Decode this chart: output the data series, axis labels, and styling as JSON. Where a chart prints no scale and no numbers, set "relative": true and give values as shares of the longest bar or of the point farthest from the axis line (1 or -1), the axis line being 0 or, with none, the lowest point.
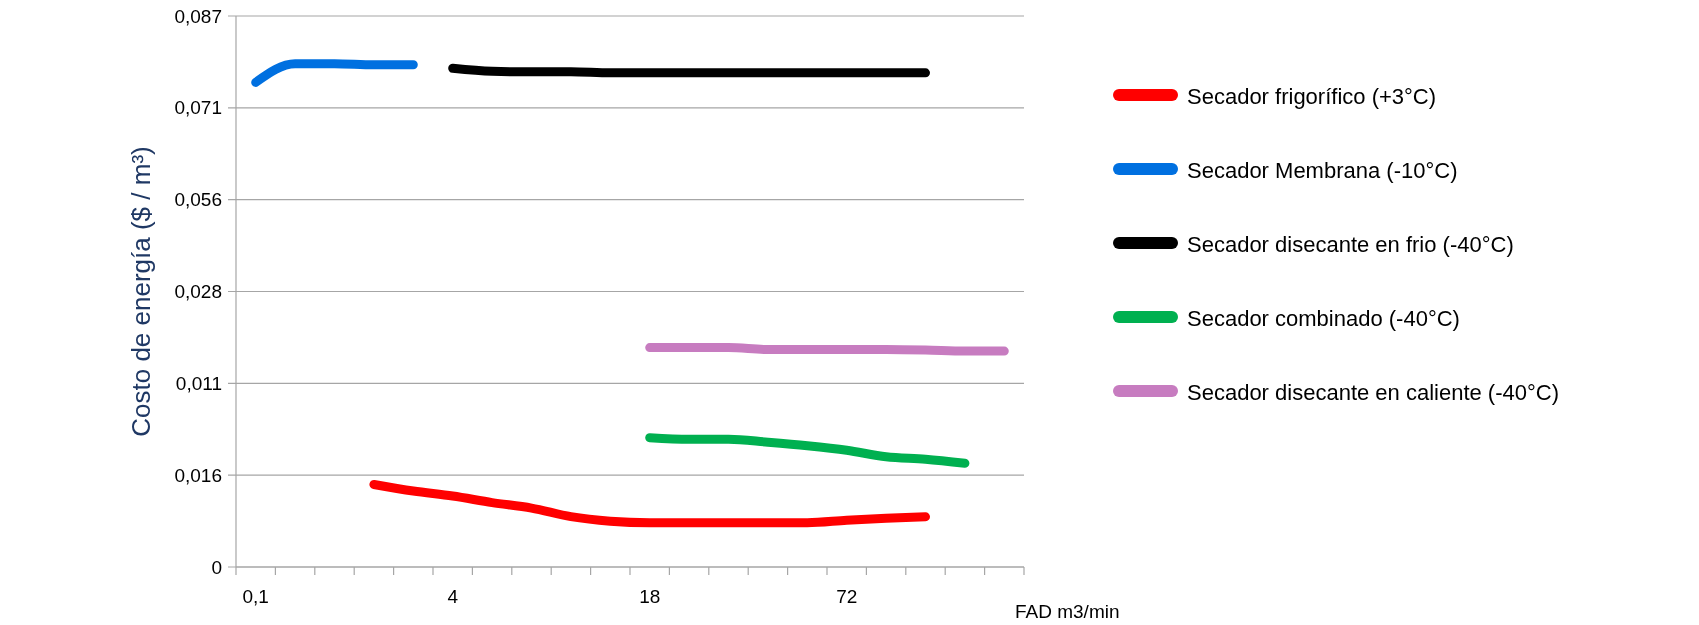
{
  "chart_data": {
    "type": "line",
    "xlabel": "FAD m3/min",
    "ylabel": "Costo de energía ($ / m³)",
    "relative": true,
    "categories": [
      "0,1",
      null,
      null,
      null,
      null,
      "4",
      null,
      null,
      null,
      null,
      "18",
      null,
      null,
      null,
      null,
      "72",
      null,
      null,
      null,
      null
    ],
    "annotations": [
      "0",
      "0,016",
      "0,011",
      "0,028",
      "0,056",
      "0,071",
      "0,087"
    ],
    "grid": "y",
    "legend": "right",
    "line_style": "solid",
    "marker": "none",
    "series": [
      {
        "name": "Secador frigorífico  (+3°C)",
        "color": "#ff0000",
        "values": [
          null,
          null,
          null,
          0.164,
          0.151,
          0.141,
          0.128,
          0.117,
          0.1,
          0.091,
          0.088,
          0.088,
          0.088,
          0.088,
          0.088,
          0.093,
          0.097,
          0.1,
          null,
          null
        ]
      },
      {
        "name": "Secador  Membrana (-10°C)",
        "color": "#0070e0",
        "values": [
          0.963,
          1,
          1,
          0.998,
          0.998,
          null,
          null,
          null,
          null,
          null,
          null,
          null,
          null,
          null,
          null,
          null,
          null,
          null,
          null,
          null
        ]
      },
      {
        "name": "Secador disecante  en frio (-40°C)",
        "color": "#000000",
        "values": [
          null,
          null,
          null,
          null,
          null,
          0.991,
          0.985,
          0.984,
          0.984,
          0.982,
          0.982,
          0.982,
          0.982,
          0.982,
          0.982,
          0.982,
          0.982,
          0.982,
          null,
          null
        ]
      },
      {
        "name": "Secador combinado (-40°C)",
        "color": "#00b050",
        "values": [
          null,
          null,
          null,
          null,
          null,
          null,
          null,
          null,
          null,
          null,
          0.257,
          0.254,
          0.254,
          0.248,
          0.241,
          0.232,
          0.219,
          0.214,
          0.206,
          null
        ]
      },
      {
        "name": "Secador disecante en caliente (-40°C)",
        "color": "#c77cc0",
        "values": [
          null,
          null,
          null,
          null,
          null,
          null,
          null,
          null,
          null,
          null,
          0.436,
          0.436,
          0.436,
          0.432,
          0.432,
          0.432,
          0.432,
          0.431,
          0.429,
          0.429
        ]
      }
    ]
  }
}
